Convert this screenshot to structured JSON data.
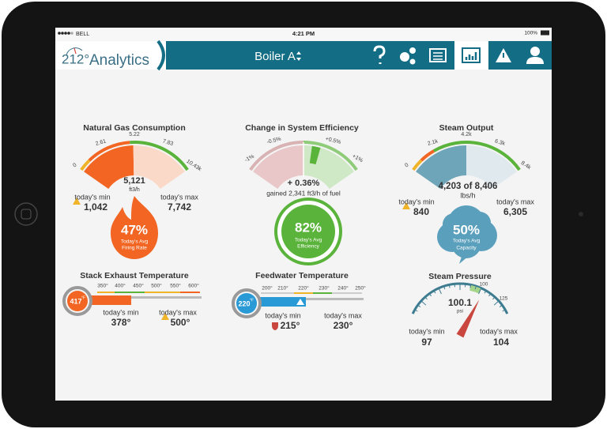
{
  "status_bar": {
    "carrier": "BELL",
    "time": "4:21 PM",
    "battery": "100%"
  },
  "header": {
    "logo_number": "212°",
    "logo_text": "Analytics",
    "title": "Boiler A"
  },
  "panels": [
    {
      "title": "Natural Gas Consumption",
      "scale": [
        "0",
        "2.61",
        "5.22",
        "7.83",
        "10.43k"
      ],
      "reading": "5,121",
      "unit": "ft3/h",
      "min_label": "today's min",
      "min": "1,042",
      "max_label": "today's max",
      "max": "7,742",
      "badge": "47%",
      "badge_lines": [
        "Today's Avg",
        "Firing Rate"
      ]
    },
    {
      "title": "Change in System Efficiency",
      "scale": [
        "-1%",
        "-0.5%",
        "+0.5%",
        "+1%"
      ],
      "reading": "+ 0.36%",
      "note": "gained 2,341 ft3/h of fuel",
      "badge": "82%",
      "badge_lines": [
        "Today's Avg",
        "Efficiency"
      ]
    },
    {
      "title": "Steam Output",
      "scale": [
        "0",
        "2.1k",
        "4.2k",
        "6.3k",
        "8.4k"
      ],
      "reading": "4,203 of 8,406",
      "unit": "lbs/h",
      "min_label": "today's min",
      "min": "840",
      "max_label": "today's max",
      "max": "6,305",
      "badge": "50%",
      "badge_lines": [
        "Today's Avg",
        "Capacity"
      ]
    },
    {
      "title": "Stack Exhaust Temperature",
      "current": "417",
      "current_unit": "°F",
      "scale": [
        "350°",
        "400°",
        "450°",
        "500°",
        "550°",
        "600°"
      ],
      "min_label": "today's min",
      "min": "378°",
      "max_label": "today's max",
      "max": "500°"
    },
    {
      "title": "Feedwater Temperature",
      "current": "220",
      "current_unit": "°F",
      "scale": [
        "200°",
        "210°",
        "220°",
        "230°",
        "240°",
        "250°"
      ],
      "min_label": "today's min",
      "min": "215°",
      "max_label": "today's max",
      "max": "230°"
    },
    {
      "title": "Steam Pressure",
      "reading": "100.1",
      "unit": "psi",
      "scale": [
        "100",
        "125"
      ],
      "min_label": "today's min",
      "min": "97",
      "max_label": "today's max",
      "max": "104"
    }
  ]
}
